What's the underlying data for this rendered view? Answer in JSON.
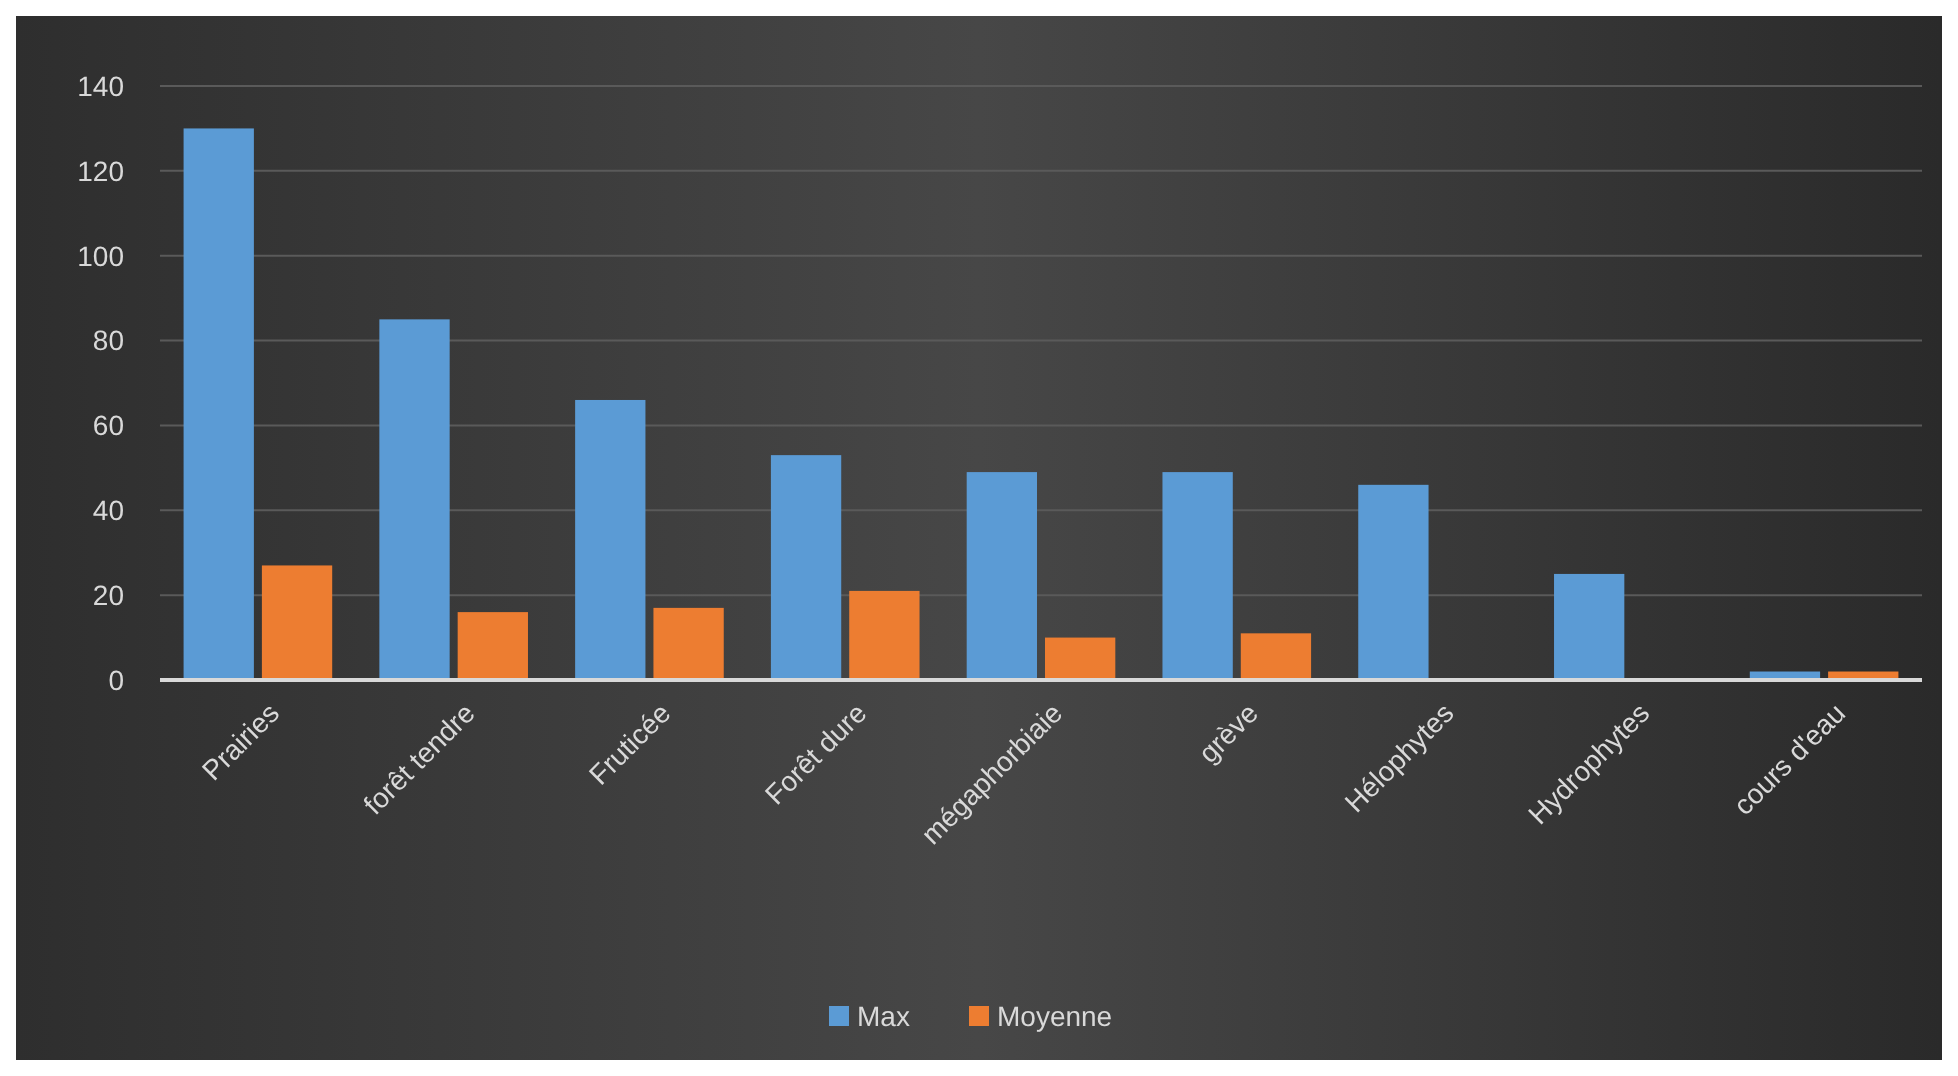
{
  "chart_data": {
    "type": "bar",
    "categories": [
      "Prairies",
      "forêt tendre",
      "Fruticée",
      "Forêt dure",
      "mégaphorbiaie",
      "grève",
      "Hélophytes",
      "Hydrophytes",
      "cours d'eau"
    ],
    "series": [
      {
        "name": "Max",
        "color": "#5b9bd5",
        "values": [
          130,
          85,
          66,
          53,
          49,
          49,
          46,
          25,
          2
        ]
      },
      {
        "name": "Moyenne",
        "color": "#ed7d31",
        "values": [
          27,
          16,
          17,
          21,
          10,
          11,
          0,
          0,
          2
        ]
      }
    ],
    "ylim": [
      0,
      140
    ],
    "yticks": [
      0,
      20,
      40,
      60,
      80,
      100,
      120,
      140
    ],
    "grid": "y",
    "legend": "bottom"
  }
}
